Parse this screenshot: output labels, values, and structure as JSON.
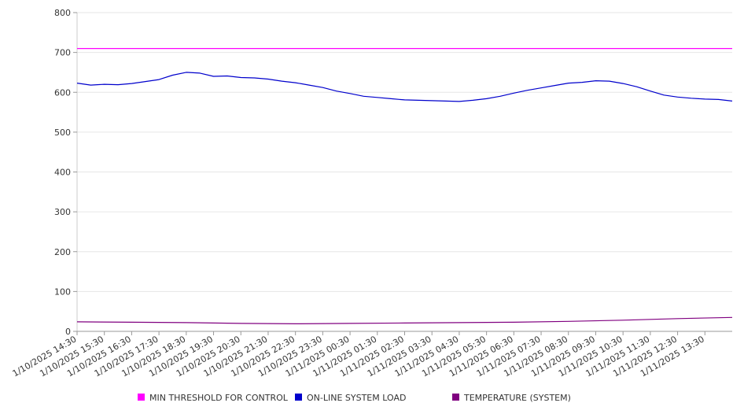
{
  "chart_data": {
    "type": "line",
    "x_tick_labels": [
      "1/10/2025 14:30",
      "1/10/2025 15:30",
      "1/10/2025 16:30",
      "1/10/2025 17:30",
      "1/10/2025 18:30",
      "1/10/2025 19:30",
      "1/10/2025 20:30",
      "1/10/2025 21:30",
      "1/10/2025 22:30",
      "1/10/2025 23:30",
      "1/11/2025 00:30",
      "1/11/2025 01:30",
      "1/11/2025 02:30",
      "1/11/2025 03:30",
      "1/11/2025 04:30",
      "1/11/2025 05:30",
      "1/11/2025 06:30",
      "1/11/2025 07:30",
      "1/11/2025 08:30",
      "1/11/2025 09:30",
      "1/11/2025 10:30",
      "1/11/2025 11:30",
      "1/11/2025 12:30",
      "1/11/2025 13:30"
    ],
    "ylim": [
      0,
      800
    ],
    "y_ticks": [
      0,
      100,
      200,
      300,
      400,
      500,
      600,
      700,
      800
    ],
    "grid": true,
    "legend_position": "bottom",
    "series": [
      {
        "name": "MIN THRESHOLD FOR CONTROL",
        "color": "#ff00ff",
        "x": [
          "1/10/2025 14:30",
          "1/11/2025 14:30"
        ],
        "values": [
          710,
          710
        ]
      },
      {
        "name": "ON-LINE SYSTEM LOAD",
        "color": "#0000cc",
        "x": [
          "1/10/2025 14:30",
          "1/10/2025 15:00",
          "1/10/2025 15:30",
          "1/10/2025 16:00",
          "1/10/2025 16:30",
          "1/10/2025 17:00",
          "1/10/2025 17:30",
          "1/10/2025 18:00",
          "1/10/2025 18:30",
          "1/10/2025 19:00",
          "1/10/2025 19:30",
          "1/10/2025 20:00",
          "1/10/2025 20:30",
          "1/10/2025 21:00",
          "1/10/2025 21:30",
          "1/10/2025 22:00",
          "1/10/2025 22:30",
          "1/10/2025 23:00",
          "1/10/2025 23:30",
          "1/11/2025 00:00",
          "1/11/2025 00:30",
          "1/11/2025 01:00",
          "1/11/2025 01:30",
          "1/11/2025 02:00",
          "1/11/2025 02:30",
          "1/11/2025 03:00",
          "1/11/2025 03:30",
          "1/11/2025 04:00",
          "1/11/2025 04:30",
          "1/11/2025 05:00",
          "1/11/2025 05:30",
          "1/11/2025 06:00",
          "1/11/2025 06:30",
          "1/11/2025 07:00",
          "1/11/2025 07:30",
          "1/11/2025 08:00",
          "1/11/2025 08:30",
          "1/11/2025 09:00",
          "1/11/2025 09:30",
          "1/11/2025 10:00",
          "1/11/2025 10:30",
          "1/11/2025 11:00",
          "1/11/2025 11:30",
          "1/11/2025 12:00",
          "1/11/2025 12:30",
          "1/11/2025 13:00",
          "1/11/2025 13:30",
          "1/11/2025 14:00",
          "1/11/2025 14:30"
        ],
        "values": [
          623,
          618,
          620,
          619,
          622,
          627,
          632,
          643,
          650,
          648,
          640,
          641,
          637,
          636,
          633,
          628,
          624,
          618,
          612,
          603,
          597,
          590,
          587,
          584,
          581,
          580,
          579,
          578,
          577,
          580,
          584,
          590,
          598,
          605,
          611,
          617,
          623,
          625,
          629,
          628,
          622,
          614,
          603,
          593,
          588,
          585,
          583,
          582,
          578
        ]
      },
      {
        "name": "TEMPERATURE (SYSTEM)",
        "color": "#800080",
        "x": [
          "1/10/2025 14:30",
          "1/10/2025 16:30",
          "1/10/2025 18:30",
          "1/10/2025 20:30",
          "1/10/2025 22:30",
          "1/11/2025 00:30",
          "1/11/2025 02:30",
          "1/11/2025 04:30",
          "1/11/2025 06:30",
          "1/11/2025 08:30",
          "1/11/2025 10:30",
          "1/11/2025 12:30",
          "1/11/2025 14:30"
        ],
        "values": [
          24,
          23,
          22,
          20,
          19,
          20,
          21,
          22,
          23,
          25,
          28,
          32,
          35
        ]
      }
    ]
  }
}
